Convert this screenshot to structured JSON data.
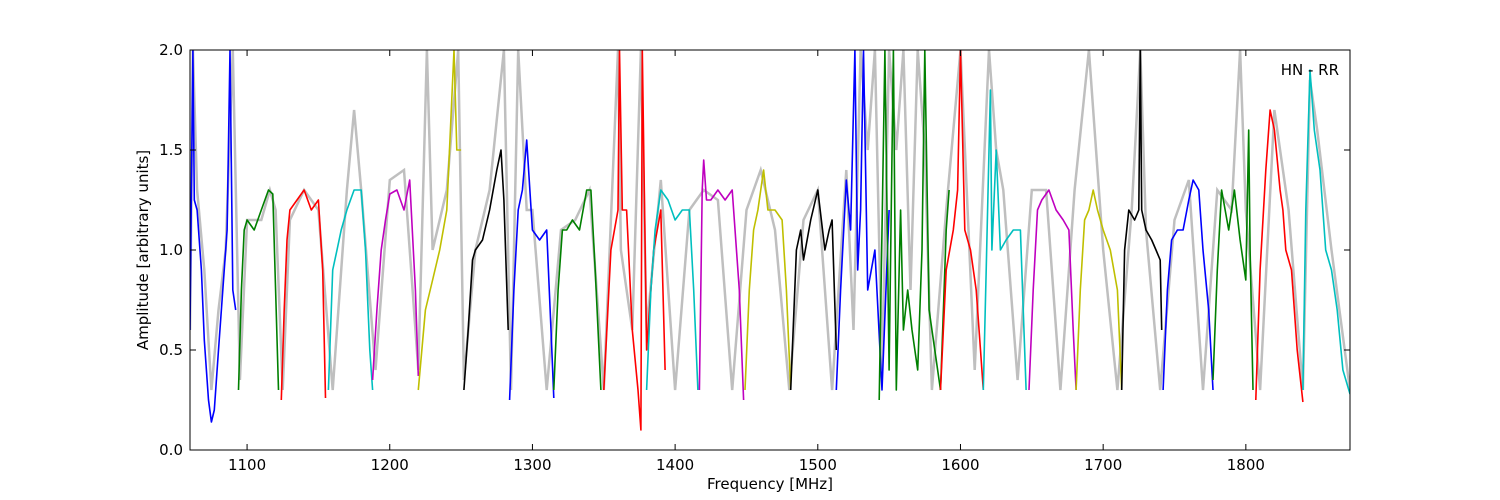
{
  "chart_data": {
    "type": "line",
    "title": "",
    "annotation": "HN - RR",
    "xlabel": "Frequency [MHz]",
    "ylabel": "Amplitude [arbitrary units]",
    "xlim": [
      1060,
      1873
    ],
    "ylim": [
      0.0,
      2.0
    ],
    "xticks": [
      1100,
      1200,
      1300,
      1400,
      1500,
      1600,
      1700,
      1800
    ],
    "yticks": [
      0.0,
      0.5,
      1.0,
      1.5,
      2.0
    ],
    "xtick_labels": [
      "1100",
      "1200",
      "1300",
      "1400",
      "1500",
      "1600",
      "1700",
      "1800"
    ],
    "ytick_labels": [
      "0.0",
      "0.5",
      "1.0",
      "1.5",
      "2.0"
    ],
    "grid": false,
    "colors": {
      "raw": "#bfbfbf",
      "b": "#0000ff",
      "g": "#008000",
      "r": "#ff0000",
      "c": "#00bfbf",
      "m": "#bf00bf",
      "y": "#bfbf00",
      "k": "#000000"
    },
    "raw_trace": {
      "x": [
        1060,
        1062,
        1065,
        1070,
        1075,
        1080,
        1085,
        1090,
        1095,
        1100,
        1110,
        1116,
        1120,
        1125,
        1130,
        1140,
        1150,
        1160,
        1170,
        1175,
        1180,
        1190,
        1200,
        1210,
        1220,
        1226,
        1230,
        1240,
        1248,
        1252,
        1260,
        1270,
        1280,
        1285,
        1290,
        1296,
        1300,
        1310,
        1320,
        1330,
        1340,
        1350,
        1360,
        1362,
        1370,
        1376,
        1380,
        1390,
        1400,
        1410,
        1420,
        1430,
        1440,
        1450,
        1460,
        1470,
        1480,
        1490,
        1500,
        1510,
        1520,
        1525,
        1530,
        1535,
        1540,
        1545,
        1550,
        1555,
        1560,
        1565,
        1570,
        1575,
        1580,
        1590,
        1600,
        1610,
        1620,
        1625,
        1630,
        1640,
        1650,
        1660,
        1670,
        1680,
        1690,
        1700,
        1710,
        1720,
        1726,
        1730,
        1740,
        1750,
        1760,
        1770,
        1780,
        1790,
        1796,
        1800,
        1810,
        1820,
        1830,
        1840,
        1845,
        1850,
        1860,
        1873
      ],
      "y": [
        0.6,
        2.0,
        1.3,
        0.9,
        0.3,
        0.7,
        1.0,
        2.0,
        0.35,
        1.15,
        1.15,
        1.3,
        1.2,
        0.3,
        1.15,
        1.3,
        1.2,
        0.3,
        1.3,
        1.7,
        1.3,
        0.4,
        1.35,
        1.4,
        0.4,
        2.0,
        1.0,
        1.3,
        2.0,
        0.35,
        1.0,
        1.3,
        2.0,
        0.3,
        2.0,
        1.2,
        1.2,
        0.3,
        1.1,
        1.15,
        1.3,
        0.3,
        2.0,
        1.0,
        0.6,
        2.0,
        0.6,
        1.35,
        0.3,
        1.2,
        1.3,
        1.25,
        0.3,
        1.2,
        1.4,
        1.1,
        0.3,
        1.15,
        1.3,
        0.3,
        1.4,
        0.6,
        2.0,
        1.5,
        2.0,
        0.4,
        2.0,
        1.5,
        2.0,
        0.8,
        2.0,
        1.5,
        0.3,
        1.2,
        2.0,
        0.4,
        2.0,
        1.5,
        1.3,
        0.35,
        1.3,
        1.3,
        0.3,
        1.3,
        2.0,
        1.0,
        0.3,
        1.2,
        2.0,
        1.1,
        0.3,
        1.15,
        1.35,
        0.3,
        1.3,
        1.2,
        2.0,
        1.2,
        0.3,
        1.7,
        1.2,
        0.3,
        1.85,
        1.6,
        1.0,
        0.3
      ]
    },
    "series": [
      {
        "color_key": "b",
        "x": [
          1060,
          1061,
          1062,
          1063,
          1065,
          1068,
          1070,
          1073,
          1075,
          1077,
          1080,
          1083,
          1086,
          1088,
          1090,
          1092
        ],
        "y": [
          0.6,
          1.3,
          2.0,
          1.25,
          1.2,
          0.9,
          0.55,
          0.25,
          0.14,
          0.2,
          0.5,
          0.8,
          1.1,
          2.0,
          0.8,
          0.7
        ]
      },
      {
        "color_key": "g",
        "x": [
          1094,
          1096,
          1098,
          1100,
          1105,
          1110,
          1115,
          1118,
          1120,
          1122
        ],
        "y": [
          0.3,
          0.8,
          1.1,
          1.15,
          1.1,
          1.2,
          1.3,
          1.28,
          0.8,
          0.3
        ]
      },
      {
        "color_key": "r",
        "x": [
          1124,
          1126,
          1128,
          1130,
          1135,
          1140,
          1145,
          1150,
          1153,
          1155
        ],
        "y": [
          0.25,
          0.7,
          1.05,
          1.2,
          1.25,
          1.3,
          1.2,
          1.25,
          0.9,
          0.26
        ]
      },
      {
        "color_key": "c",
        "x": [
          1157,
          1160,
          1163,
          1166,
          1170,
          1175,
          1180,
          1183,
          1186,
          1188
        ],
        "y": [
          0.3,
          0.9,
          1.0,
          1.1,
          1.2,
          1.3,
          1.3,
          1.0,
          0.5,
          0.3
        ]
      },
      {
        "color_key": "m",
        "x": [
          1188,
          1191,
          1194,
          1197,
          1200,
          1205,
          1210,
          1214,
          1218,
          1220
        ],
        "y": [
          0.35,
          0.7,
          1.0,
          1.15,
          1.28,
          1.3,
          1.2,
          1.35,
          0.8,
          0.37
        ]
      },
      {
        "color_key": "y",
        "x": [
          1220,
          1225,
          1230,
          1235,
          1240,
          1245,
          1247,
          1250
        ],
        "y": [
          0.3,
          0.7,
          0.85,
          1.0,
          1.2,
          2.0,
          1.5,
          1.5
        ]
      },
      {
        "color_key": "k",
        "x": [
          1252,
          1255,
          1258,
          1260,
          1265,
          1270,
          1275,
          1278,
          1280,
          1283
        ],
        "y": [
          0.3,
          0.6,
          0.95,
          1.0,
          1.05,
          1.2,
          1.4,
          1.5,
          1.25,
          0.6
        ]
      },
      {
        "color_key": "b",
        "x": [
          1284,
          1287,
          1290,
          1293,
          1296,
          1300,
          1305,
          1310,
          1313,
          1315
        ],
        "y": [
          0.25,
          0.8,
          1.2,
          1.3,
          1.55,
          1.1,
          1.05,
          1.1,
          0.6,
          0.26
        ]
      },
      {
        "color_key": "g",
        "x": [
          1315,
          1318,
          1321,
          1324,
          1328,
          1333,
          1338,
          1341,
          1344,
          1348
        ],
        "y": [
          0.3,
          0.8,
          1.1,
          1.1,
          1.15,
          1.1,
          1.3,
          1.3,
          0.9,
          0.3
        ]
      },
      {
        "color_key": "r",
        "x": [
          1350,
          1355,
          1360,
          1361,
          1363,
          1366,
          1370,
          1374,
          1376,
          1377,
          1380,
          1385,
          1390,
          1393
        ],
        "y": [
          0.3,
          1.0,
          1.2,
          2.0,
          1.2,
          1.2,
          0.6,
          0.3,
          0.1,
          2.0,
          0.5,
          1.0,
          1.2,
          0.4
        ]
      },
      {
        "color_key": "c",
        "x": [
          1380,
          1383,
          1386,
          1390,
          1395,
          1400,
          1405,
          1410,
          1413,
          1416
        ],
        "y": [
          0.3,
          0.8,
          1.1,
          1.3,
          1.25,
          1.15,
          1.2,
          1.2,
          0.8,
          0.3
        ]
      },
      {
        "color_key": "m",
        "x": [
          1417,
          1419,
          1420,
          1422,
          1425,
          1430,
          1435,
          1440,
          1445,
          1448
        ],
        "y": [
          0.3,
          1.3,
          1.45,
          1.25,
          1.25,
          1.3,
          1.25,
          1.3,
          0.8,
          0.25
        ]
      },
      {
        "color_key": "y",
        "x": [
          1449,
          1452,
          1455,
          1458,
          1462,
          1465,
          1470,
          1475,
          1478,
          1481
        ],
        "y": [
          0.3,
          0.8,
          1.1,
          1.2,
          1.4,
          1.2,
          1.2,
          1.15,
          0.8,
          0.3
        ]
      },
      {
        "color_key": "k",
        "x": [
          1481,
          1485,
          1488,
          1490,
          1495,
          1500,
          1505,
          1508,
          1510,
          1513
        ],
        "y": [
          0.3,
          1.0,
          1.1,
          0.95,
          1.15,
          1.3,
          1.0,
          1.1,
          1.15,
          0.5
        ]
      },
      {
        "color_key": "b",
        "x": [
          1513,
          1516,
          1520,
          1523,
          1526,
          1528,
          1530,
          1532,
          1535,
          1540,
          1545,
          1550
        ],
        "y": [
          0.3,
          0.8,
          1.35,
          1.1,
          2.0,
          0.9,
          1.2,
          2.0,
          0.8,
          1.0,
          0.3,
          1.2
        ]
      },
      {
        "color_key": "g",
        "x": [
          1543,
          1545,
          1547,
          1550,
          1553,
          1555,
          1558,
          1560,
          1563,
          1566,
          1570,
          1573,
          1575,
          1578,
          1582,
          1586
        ],
        "y": [
          0.25,
          1.1,
          2.0,
          0.4,
          2.0,
          0.3,
          1.2,
          0.6,
          0.8,
          0.6,
          0.4,
          1.0,
          2.0,
          0.7,
          0.5,
          0.3
        ]
      },
      {
        "color_key": "g",
        "x": [
          1586,
          1588,
          1590,
          1592
        ],
        "y": [
          0.3,
          0.7,
          1.1,
          1.3
        ]
      },
      {
        "color_key": "r",
        "x": [
          1586,
          1590,
          1595,
          1598,
          1600,
          1603,
          1607,
          1611,
          1614,
          1616
        ],
        "y": [
          0.3,
          0.9,
          1.1,
          1.3,
          2.0,
          1.1,
          1.0,
          0.8,
          0.5,
          0.3
        ]
      },
      {
        "color_key": "c",
        "x": [
          1616,
          1618,
          1621,
          1622,
          1625,
          1628,
          1632,
          1637,
          1642,
          1646
        ],
        "y": [
          0.3,
          0.9,
          1.8,
          1.0,
          1.5,
          1.0,
          1.05,
          1.1,
          1.1,
          0.3
        ]
      },
      {
        "color_key": "m",
        "x": [
          1648,
          1651,
          1654,
          1657,
          1662,
          1667,
          1672,
          1676,
          1679,
          1681
        ],
        "y": [
          0.3,
          0.8,
          1.2,
          1.25,
          1.3,
          1.2,
          1.15,
          1.1,
          0.6,
          0.3
        ]
      },
      {
        "color_key": "y",
        "x": [
          1681,
          1684,
          1687,
          1690,
          1693,
          1696,
          1700,
          1705,
          1710,
          1713
        ],
        "y": [
          0.3,
          0.8,
          1.15,
          1.2,
          1.3,
          1.2,
          1.1,
          1.0,
          0.8,
          0.3
        ]
      },
      {
        "color_key": "k",
        "x": [
          1713,
          1715,
          1718,
          1722,
          1725,
          1726,
          1727,
          1730,
          1734,
          1737,
          1740,
          1741
        ],
        "y": [
          0.3,
          1.0,
          1.2,
          1.15,
          1.2,
          2.0,
          1.2,
          1.1,
          1.05,
          1.0,
          0.95,
          0.6
        ]
      },
      {
        "color_key": "b",
        "x": [
          1742,
          1745,
          1748,
          1752,
          1756,
          1760,
          1763,
          1767,
          1770,
          1774,
          1777
        ],
        "y": [
          0.3,
          0.8,
          1.05,
          1.1,
          1.1,
          1.25,
          1.35,
          1.3,
          1.0,
          0.7,
          0.3
        ]
      },
      {
        "color_key": "g",
        "x": [
          1777,
          1780,
          1783,
          1788,
          1792,
          1796,
          1800,
          1802,
          1803,
          1805
        ],
        "y": [
          0.35,
          0.9,
          1.3,
          1.1,
          1.3,
          1.05,
          0.85,
          1.6,
          1.0,
          0.3
        ]
      },
      {
        "color_key": "r",
        "x": [
          1807,
          1810,
          1814,
          1817,
          1820,
          1824,
          1826,
          1828,
          1832,
          1836,
          1840
        ],
        "y": [
          0.25,
          0.9,
          1.4,
          1.7,
          1.6,
          1.3,
          1.2,
          1.0,
          0.9,
          0.5,
          0.24
        ]
      },
      {
        "color_key": "c",
        "x": [
          1840,
          1842,
          1845,
          1848,
          1852,
          1856,
          1860,
          1864,
          1868,
          1873
        ],
        "y": [
          0.3,
          1.2,
          1.9,
          1.6,
          1.4,
          1.0,
          0.9,
          0.7,
          0.4,
          0.28
        ]
      }
    ]
  }
}
